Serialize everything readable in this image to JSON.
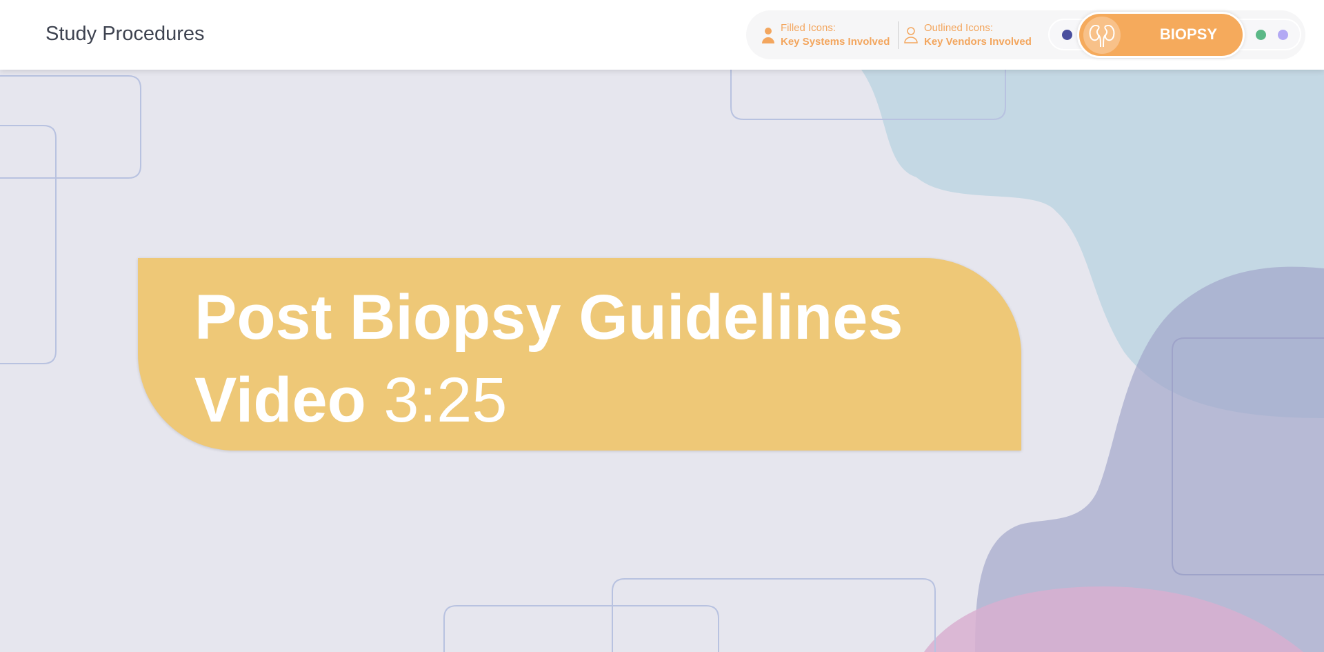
{
  "header": {
    "title": "Study Procedures"
  },
  "legend": {
    "filled": {
      "label": "Filled Icons:",
      "value": "Key Systems Involved",
      "icon": "person-filled-icon"
    },
    "outlined": {
      "label": "Outlined Icons:",
      "value": "Key Vendors Involved",
      "icon": "person-outline-icon"
    }
  },
  "procedure_selector": {
    "active_label": "BIOPSY",
    "active_icon": "kidneys-icon",
    "dot_colors": [
      "#4a4f9e",
      "#5bb887",
      "#b3a9f4"
    ],
    "accent": "#f5aa5c"
  },
  "banner": {
    "title": "Post Biopsy Guidelines",
    "line2_bold": "Video",
    "duration": "3:25",
    "color": "#eec877"
  }
}
